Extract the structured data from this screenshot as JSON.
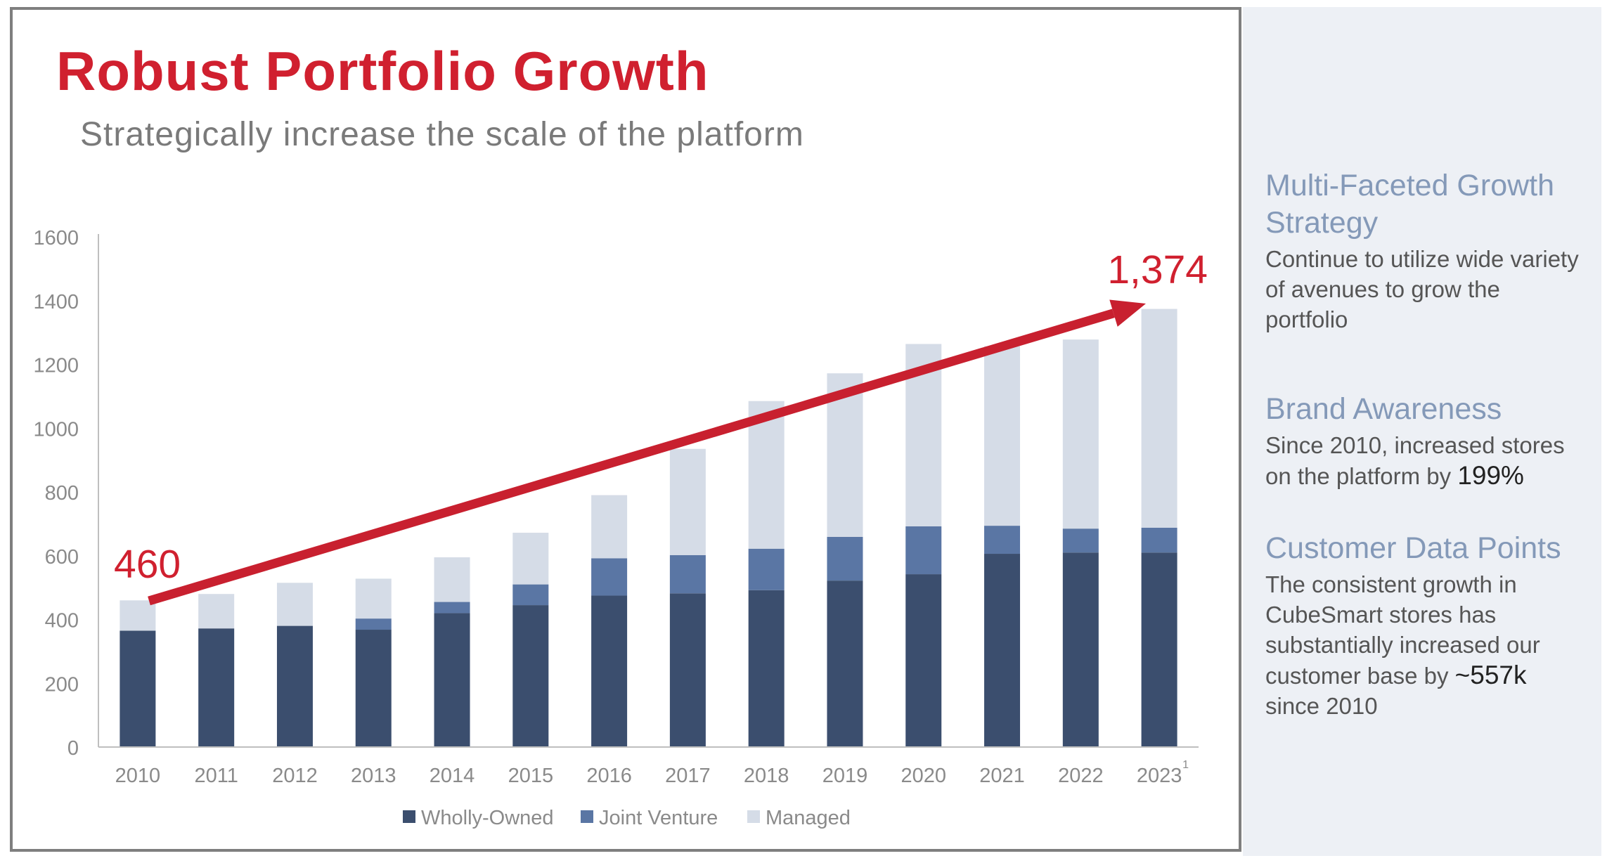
{
  "title": "Robust Portfolio Growth",
  "subtitle": "Strategically increase the scale of the platform",
  "colors": {
    "title_red": "#d0202f",
    "wholly_owned": "#3b4e6e",
    "joint_venture": "#5a76a4",
    "managed": "#d5dce7",
    "arrow": "#c8202f",
    "sidebar_heading": "#8499b8",
    "sidebar_bg": "#edf0f5"
  },
  "chart_data": {
    "type": "bar",
    "stacked": true,
    "categories": [
      "2010",
      "2011",
      "2012",
      "2013",
      "2014",
      "2015",
      "2016",
      "2017",
      "2018",
      "2019",
      "2020",
      "2021",
      "2022",
      "2023"
    ],
    "category_footnote": {
      "index": 13,
      "mark": "1"
    },
    "series": [
      {
        "name": "Wholly-Owned",
        "values": [
          365,
          372,
          380,
          368,
          420,
          445,
          475,
          482,
          492,
          522,
          542,
          606,
          610,
          610
        ]
      },
      {
        "name": "Joint Venture",
        "values": [
          0,
          0,
          0,
          35,
          35,
          65,
          117,
          120,
          130,
          137,
          150,
          88,
          75,
          78
        ]
      },
      {
        "name": "Managed",
        "values": [
          95,
          108,
          135,
          125,
          140,
          162,
          198,
          333,
          463,
          513,
          572,
          563,
          593,
          686
        ]
      }
    ],
    "totals_annotation": {
      "start": "460",
      "end": "1,374"
    },
    "ylim": [
      0,
      1600
    ],
    "yticks": [
      "0",
      "200",
      "400",
      "600",
      "800",
      "1000",
      "1200",
      "1400",
      "1600"
    ],
    "legend_position": "bottom"
  },
  "sidebar": {
    "sections": [
      {
        "heading": "Multi-Faceted Growth Strategy",
        "body": "Continue to utilize wide variety of avenues to grow the portfolio",
        "highlight": ""
      },
      {
        "heading": "Brand Awareness",
        "body": "Since 2010, increased stores on the platform by",
        "highlight": "199%"
      },
      {
        "heading": "Customer Data Points",
        "body": "The consistent growth in CubeSmart stores has substantially increased our customer base by",
        "highlight": "~557k",
        "tail": "since 2010"
      }
    ]
  }
}
